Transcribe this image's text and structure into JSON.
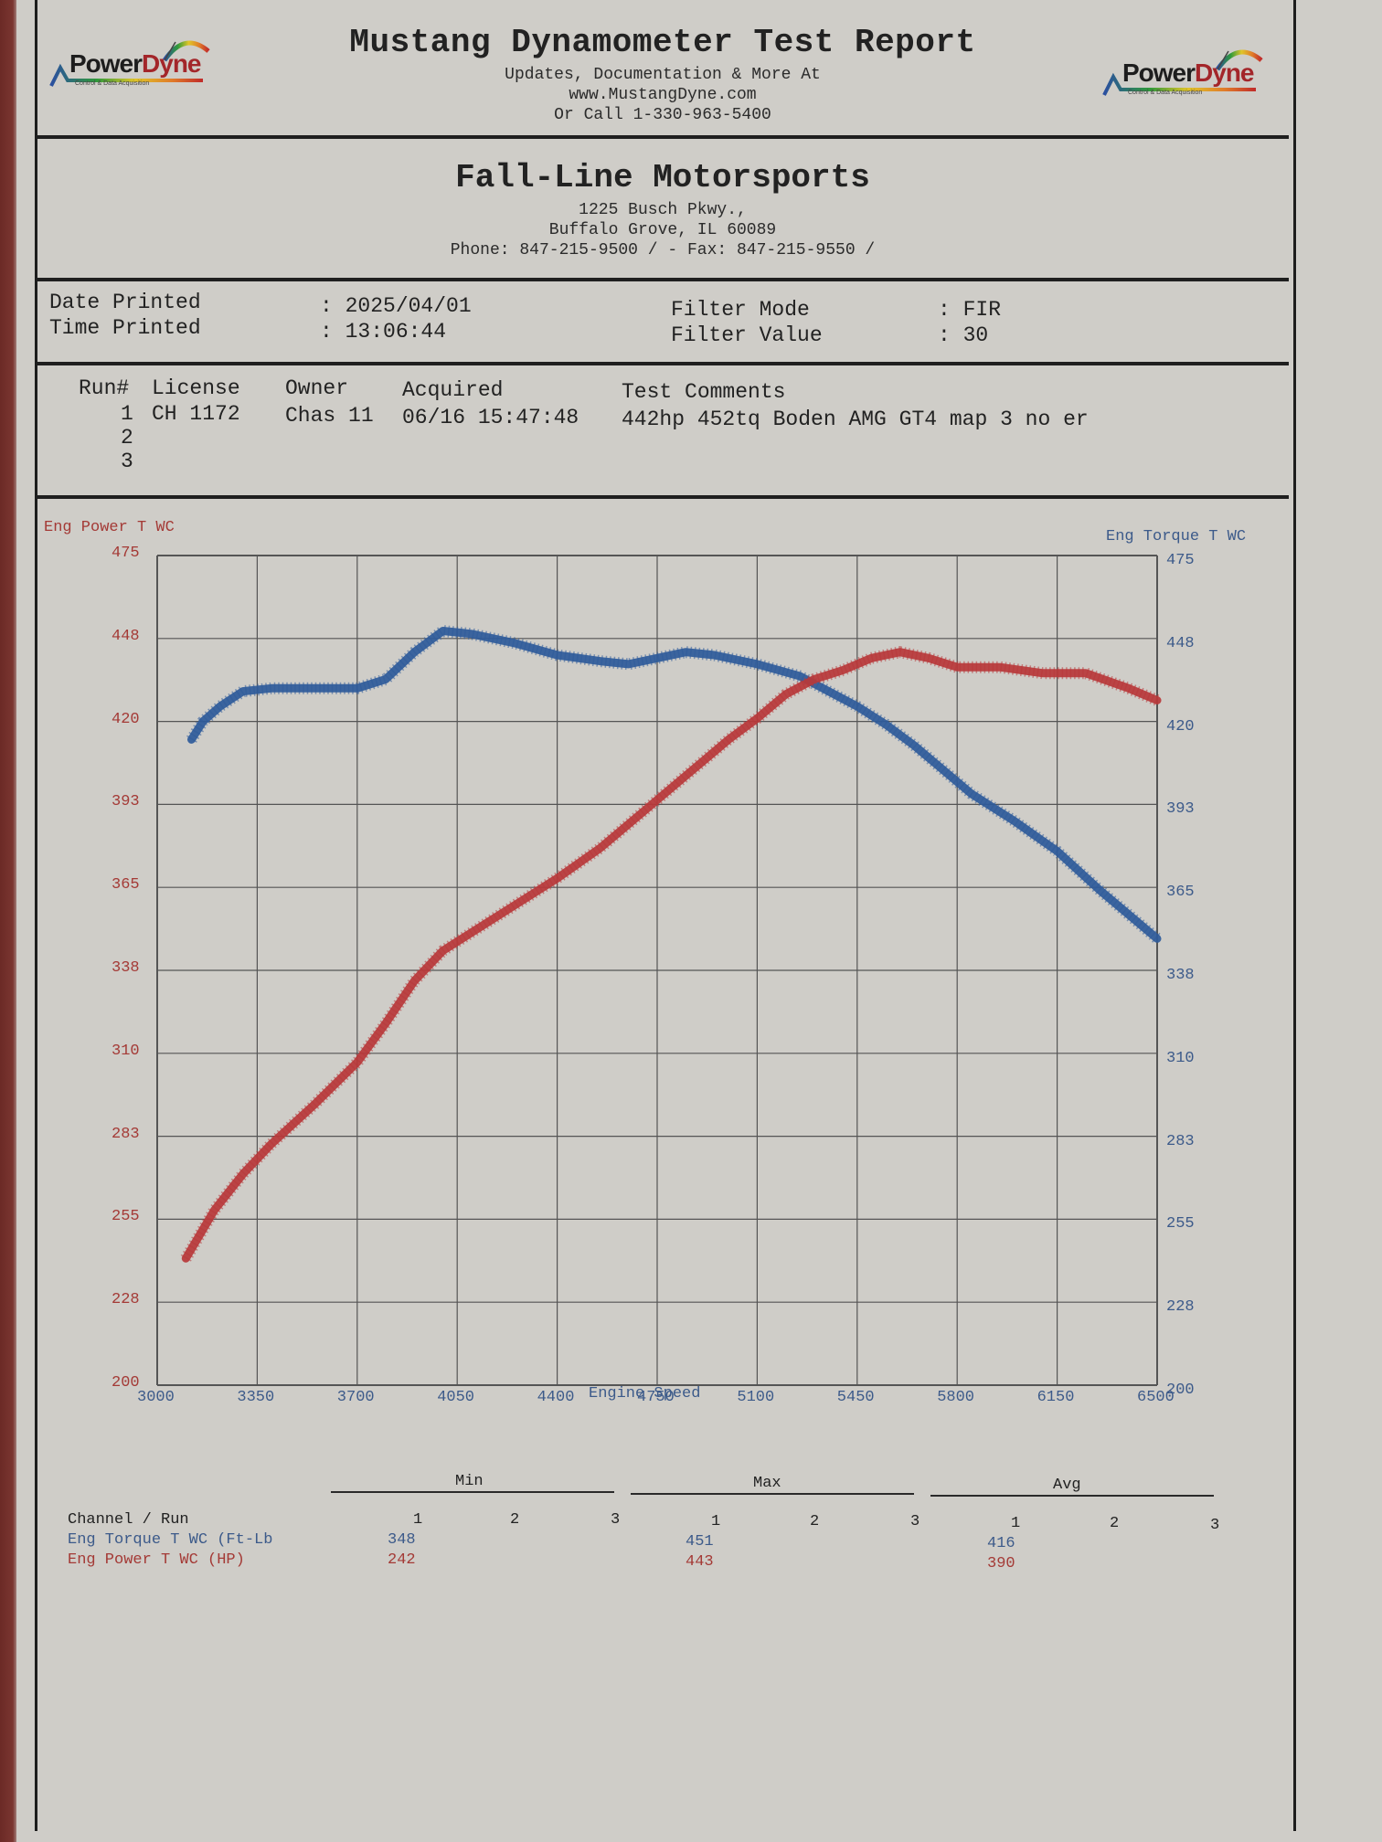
{
  "header": {
    "title": "Mustang Dynamometer Test Report",
    "lines": [
      "Updates, Documentation & More At",
      "www.MustangDyne.com",
      "Or Call 1-330-963-5400"
    ],
    "logo_left": {
      "word1": "Power",
      "word2": "Dyne",
      "tagline": "Control & Data Acquisition"
    },
    "logo_right": {
      "word1": "Power",
      "word2": "Dyne",
      "tagline": "Control & Data Acquisition"
    }
  },
  "shop": {
    "name": "Fall-Line Motorsports",
    "address1": "1225 Busch Pkwy.,",
    "address2": "Buffalo Grove, IL  60089",
    "contact": "Phone: 847-215-9500 /  - Fax: 847-215-9550 /"
  },
  "print_info": {
    "date_label": "Date Printed",
    "date_value": ": 2025/04/01",
    "time_label": "Time Printed",
    "time_value": ": 13:06:44",
    "filter_mode_label": "Filter Mode",
    "filter_mode_value": ": FIR",
    "filter_value_label": "Filter Value",
    "filter_value_value": ": 30"
  },
  "runs": {
    "headers": [
      "Run#",
      "License",
      "Owner",
      "Acquired",
      "Test Comments"
    ],
    "rows": [
      {
        "run": "1",
        "license": "CH 1172",
        "owner": "Chas 11",
        "acquired": "06/16 15:47:48",
        "comments": "442hp 452tq Boden AMG GT4 map 3 no er"
      },
      {
        "run": "2",
        "license": "",
        "owner": "",
        "acquired": "",
        "comments": ""
      },
      {
        "run": "3",
        "license": "",
        "owner": "",
        "acquired": "",
        "comments": ""
      }
    ]
  },
  "colors": {
    "power": "#b8383a",
    "torque": "#2f5b9a",
    "grid": "#555555",
    "paper": "#cfcdc8"
  },
  "chart_data": {
    "type": "line",
    "title": "",
    "xlabel": "Engine Speed",
    "ylabel_left": "Eng Power T WC",
    "ylabel_right": "Eng Torque T WC",
    "xlim": [
      3000,
      6500
    ],
    "ylim": [
      200,
      475
    ],
    "x_ticks": [
      "3000",
      "3350",
      "3700",
      "4050",
      "4400",
      "4750",
      "5100",
      "5450",
      "5800",
      "6150",
      "6500"
    ],
    "y_ticks": [
      "475",
      "448",
      "420",
      "393",
      "365",
      "338",
      "310",
      "283",
      "255",
      "228",
      "200"
    ],
    "grid": true,
    "series": [
      {
        "name": "Eng Torque T WC (Ft-Lb)",
        "axis": "right",
        "x": [
          3120,
          3160,
          3220,
          3300,
          3400,
          3550,
          3700,
          3800,
          3900,
          4000,
          4100,
          4250,
          4400,
          4550,
          4650,
          4750,
          4850,
          4950,
          5100,
          5250,
          5350,
          5450,
          5550,
          5650,
          5750,
          5850,
          6000,
          6150,
          6300,
          6500
        ],
        "values": [
          414,
          420,
          425,
          430,
          431,
          431,
          431,
          434,
          443,
          450,
          449,
          446,
          442,
          440,
          439,
          441,
          443,
          442,
          439,
          435,
          430,
          425,
          419,
          412,
          404,
          396,
          387,
          377,
          364,
          348
        ]
      },
      {
        "name": "Eng Power T WC (HP)",
        "axis": "left",
        "x": [
          3100,
          3150,
          3200,
          3300,
          3400,
          3550,
          3700,
          3800,
          3900,
          4000,
          4100,
          4250,
          4400,
          4550,
          4700,
          4850,
          5000,
          5100,
          5200,
          5300,
          5400,
          5500,
          5600,
          5700,
          5800,
          5950,
          6100,
          6250,
          6400,
          6500
        ],
        "values": [
          242,
          250,
          258,
          270,
          280,
          293,
          307,
          320,
          334,
          344,
          350,
          359,
          368,
          378,
          390,
          402,
          414,
          421,
          429,
          434,
          437,
          441,
          443,
          441,
          438,
          438,
          436,
          436,
          431,
          427
        ]
      }
    ]
  },
  "stats": {
    "groups": [
      "Min",
      "Max",
      "Avg"
    ],
    "runs_header": "Channel / Run",
    "run_numbers": [
      "1",
      "2",
      "3"
    ],
    "rows": [
      {
        "channel": "Eng Torque T WC (Ft-Lb",
        "min": [
          "348",
          "",
          ""
        ],
        "max": [
          "451",
          "",
          ""
        ],
        "avg": [
          "416",
          "",
          ""
        ]
      },
      {
        "channel": "Eng Power T WC (HP)",
        "min": [
          "242",
          "",
          ""
        ],
        "max": [
          "443",
          "",
          ""
        ],
        "avg": [
          "390",
          "",
          ""
        ]
      }
    ]
  }
}
